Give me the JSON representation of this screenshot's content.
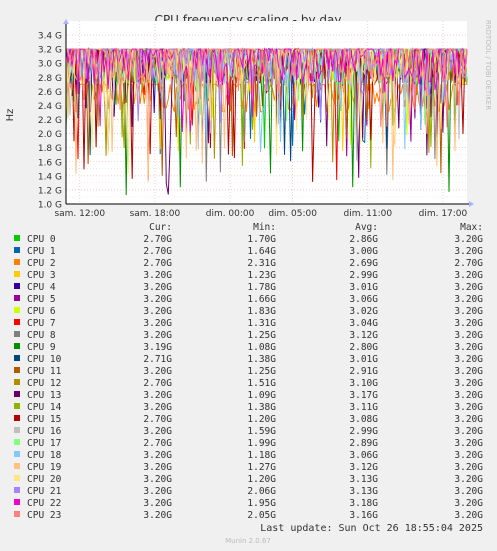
{
  "side_label": "RRDTOOL / TOBI OETIKER",
  "last_update": "Last update: Sun Oct 26 18:55:04 2025",
  "footer": "Munin 2.0.67",
  "legend_headers": {
    "cur": "Cur:",
    "min": "Min:",
    "avg": "Avg:",
    "max": "Max:"
  },
  "chart_data": {
    "type": "line",
    "title": "CPU frequency scaling - by day",
    "ylabel": "Hz",
    "xlabel": "",
    "ylim": [
      1.0,
      3.4
    ],
    "y_ticks": [
      {
        "value": 1.0,
        "label": "1.0 G"
      },
      {
        "value": 1.2,
        "label": "1.2 G"
      },
      {
        "value": 1.4,
        "label": "1.4 G"
      },
      {
        "value": 1.6,
        "label": "1.6 G"
      },
      {
        "value": 1.8,
        "label": "1.8 G"
      },
      {
        "value": 2.0,
        "label": "2.0 G"
      },
      {
        "value": 2.2,
        "label": "2.2 G"
      },
      {
        "value": 2.4,
        "label": "2.4 G"
      },
      {
        "value": 2.6,
        "label": "2.6 G"
      },
      {
        "value": 2.8,
        "label": "2.8 G"
      },
      {
        "value": 3.0,
        "label": "3.0 G"
      },
      {
        "value": 3.2,
        "label": "3.2 G"
      },
      {
        "value": 3.4,
        "label": "3.4 G"
      }
    ],
    "x_range_hours": [
      10.9,
      18.92
    ],
    "x_ticks": [
      {
        "hour": 12,
        "label": "sam. 12:00"
      },
      {
        "hour": 18,
        "label": "sam. 18:00"
      },
      {
        "hour": 24,
        "label": "dim. 00:00"
      },
      {
        "hour": 29,
        "label": "dim. 05:00"
      },
      {
        "hour": 35,
        "label": "dim. 11:00"
      },
      {
        "hour": 41,
        "label": "dim. 17:00"
      }
    ],
    "grid": true,
    "series": [
      {
        "name": "CPU 0",
        "color": "#00cc00",
        "cur": "2.70G",
        "min": "1.70G",
        "avg": "2.86G",
        "max": "3.20G"
      },
      {
        "name": "CPU 1",
        "color": "#0066b3",
        "cur": "2.70G",
        "min": "1.64G",
        "avg": "3.00G",
        "max": "3.20G"
      },
      {
        "name": "CPU 2",
        "color": "#ff8000",
        "cur": "2.70G",
        "min": "2.31G",
        "avg": "2.69G",
        "max": "2.70G"
      },
      {
        "name": "CPU 3",
        "color": "#ffcc00",
        "cur": "3.20G",
        "min": "1.23G",
        "avg": "2.99G",
        "max": "3.20G"
      },
      {
        "name": "CPU 4",
        "color": "#330099",
        "cur": "3.20G",
        "min": "1.78G",
        "avg": "3.01G",
        "max": "3.20G"
      },
      {
        "name": "CPU 5",
        "color": "#990099",
        "cur": "3.20G",
        "min": "1.66G",
        "avg": "3.06G",
        "max": "3.20G"
      },
      {
        "name": "CPU 6",
        "color": "#ccff00",
        "cur": "3.20G",
        "min": "1.83G",
        "avg": "3.02G",
        "max": "3.20G"
      },
      {
        "name": "CPU 7",
        "color": "#ff0000",
        "cur": "3.20G",
        "min": "1.31G",
        "avg": "3.04G",
        "max": "3.20G"
      },
      {
        "name": "CPU 8",
        "color": "#808080",
        "cur": "3.20G",
        "min": "1.25G",
        "avg": "3.12G",
        "max": "3.20G"
      },
      {
        "name": "CPU 9",
        "color": "#008f00",
        "cur": "3.19G",
        "min": "1.08G",
        "avg": "2.80G",
        "max": "3.20G"
      },
      {
        "name": "CPU 10",
        "color": "#00487d",
        "cur": "2.71G",
        "min": "1.38G",
        "avg": "3.01G",
        "max": "3.20G"
      },
      {
        "name": "CPU 11",
        "color": "#b35a00",
        "cur": "3.20G",
        "min": "1.25G",
        "avg": "2.91G",
        "max": "3.20G"
      },
      {
        "name": "CPU 12",
        "color": "#b38f00",
        "cur": "2.70G",
        "min": "1.51G",
        "avg": "3.10G",
        "max": "3.20G"
      },
      {
        "name": "CPU 13",
        "color": "#6b006b",
        "cur": "3.20G",
        "min": "1.09G",
        "avg": "3.17G",
        "max": "3.20G"
      },
      {
        "name": "CPU 14",
        "color": "#8fb300",
        "cur": "3.20G",
        "min": "1.38G",
        "avg": "3.11G",
        "max": "3.20G"
      },
      {
        "name": "CPU 15",
        "color": "#b30000",
        "cur": "2.70G",
        "min": "1.20G",
        "avg": "3.08G",
        "max": "3.20G"
      },
      {
        "name": "CPU 16",
        "color": "#bebebe",
        "cur": "3.20G",
        "min": "1.59G",
        "avg": "2.99G",
        "max": "3.20G"
      },
      {
        "name": "CPU 17",
        "color": "#80ff80",
        "cur": "2.70G",
        "min": "1.99G",
        "avg": "2.89G",
        "max": "3.20G"
      },
      {
        "name": "CPU 18",
        "color": "#80c9ff",
        "cur": "3.20G",
        "min": "1.18G",
        "avg": "3.06G",
        "max": "3.20G"
      },
      {
        "name": "CPU 19",
        "color": "#ffc080",
        "cur": "3.20G",
        "min": "1.27G",
        "avg": "3.12G",
        "max": "3.20G"
      },
      {
        "name": "CPU 20",
        "color": "#ffe680",
        "cur": "3.20G",
        "min": "1.20G",
        "avg": "3.13G",
        "max": "3.20G"
      },
      {
        "name": "CPU 21",
        "color": "#aa80ff",
        "cur": "3.20G",
        "min": "2.06G",
        "avg": "3.13G",
        "max": "3.20G"
      },
      {
        "name": "CPU 22",
        "color": "#ee00cc",
        "cur": "3.20G",
        "min": "1.95G",
        "avg": "3.18G",
        "max": "3.20G"
      },
      {
        "name": "CPU 23",
        "color": "#ff8080",
        "cur": "3.20G",
        "min": "2.05G",
        "avg": "3.16G",
        "max": "3.20G"
      }
    ]
  }
}
